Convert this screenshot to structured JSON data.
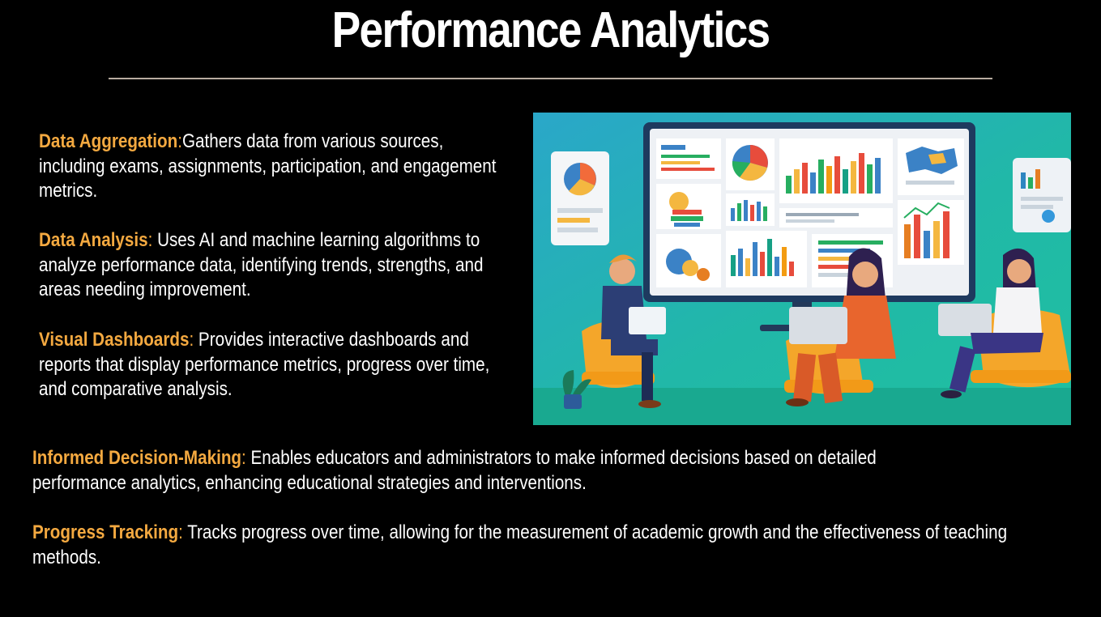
{
  "slide": {
    "title": "Performance Analytics",
    "colors": {
      "background": "#000000",
      "text": "#ffffff",
      "accent": "#f4a940",
      "rule": "#b8aca0"
    },
    "sections": [
      {
        "term": "Data Aggregation",
        "sep": ":",
        "text": "Gathers data from various sources, including exams, assignments, participation, and engagement metrics."
      },
      {
        "term": "Data Analysis",
        "sep": ":",
        "text": " Uses AI and machine learning algorithms to analyze performance data, identifying trends, strengths, and areas needing improvement."
      },
      {
        "term": "Visual Dashboards",
        "sep": ":",
        "text": " Provides interactive dashboards and reports that display performance metrics, progress over time, and comparative analysis."
      },
      {
        "term": "Informed Decision-Making",
        "sep": ":",
        "text": " Enables educators and administrators to make informed decisions based on detailed performance analytics, enhancing educational strategies and interventions."
      },
      {
        "term": "Progress Tracking",
        "sep": ":",
        "text": " Tracks progress over time, allowing for the measurement of academic growth and the effectiveness of teaching methods."
      }
    ],
    "illustration": {
      "icon": "analytics-team-illustration"
    }
  }
}
